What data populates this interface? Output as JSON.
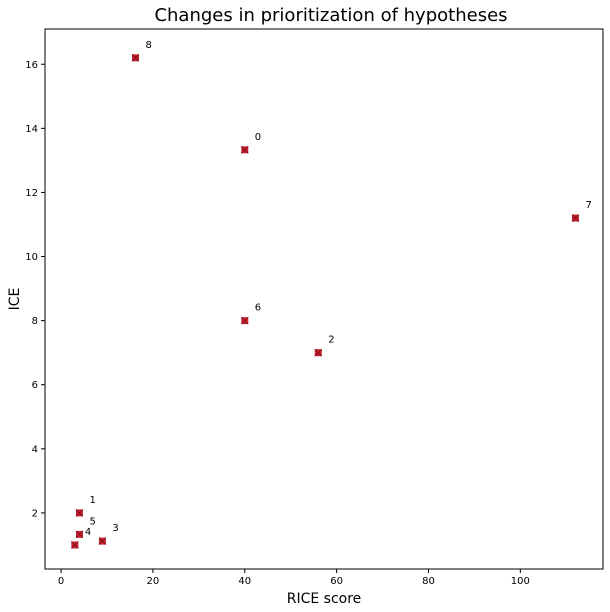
{
  "chart_data": {
    "type": "scatter",
    "title": "Changes in prioritization of hypotheses",
    "xlabel": "RICE score",
    "ylabel": "ICE",
    "xlim": [
      -3.5,
      118.0
    ],
    "ylim": [
      0.25,
      17.1
    ],
    "x_ticks": [
      0,
      20,
      40,
      60,
      80,
      100
    ],
    "y_ticks": [
      2,
      4,
      6,
      8,
      10,
      12,
      14,
      16
    ],
    "marker_color": "#c8202f",
    "marker": "x-square",
    "grid": false,
    "points": [
      {
        "label": "0",
        "x": 40.0,
        "y": 13.33
      },
      {
        "label": "1",
        "x": 4.0,
        "y": 2.0
      },
      {
        "label": "2",
        "x": 56.0,
        "y": 7.0
      },
      {
        "label": "3",
        "x": 9.0,
        "y": 1.12
      },
      {
        "label": "4",
        "x": 3.0,
        "y": 1.0
      },
      {
        "label": "5",
        "x": 4.0,
        "y": 1.33
      },
      {
        "label": "6",
        "x": 40.0,
        "y": 8.0
      },
      {
        "label": "7",
        "x": 112.0,
        "y": 11.2
      },
      {
        "label": "8",
        "x": 16.2,
        "y": 16.2
      }
    ]
  }
}
